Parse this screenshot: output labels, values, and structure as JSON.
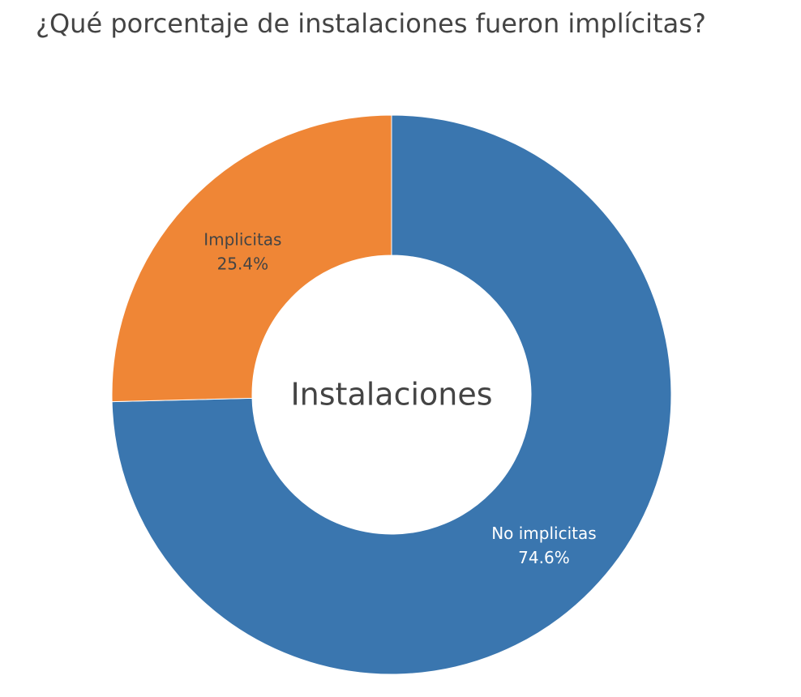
{
  "chart_data": {
    "type": "pie",
    "title": "¿Qué porcentaje de instalaciones fueron implícitas?",
    "hole_label": "Instalaciones",
    "slices": [
      {
        "label": "No implicitas",
        "value": 74.6,
        "display": "74.6%",
        "color": "#3a76af",
        "text_color": "#ffffff"
      },
      {
        "label": "Implicitas",
        "value": 25.4,
        "display": "25.4%",
        "color": "#ef8636",
        "text_color": "#444444"
      }
    ],
    "legend": false
  }
}
